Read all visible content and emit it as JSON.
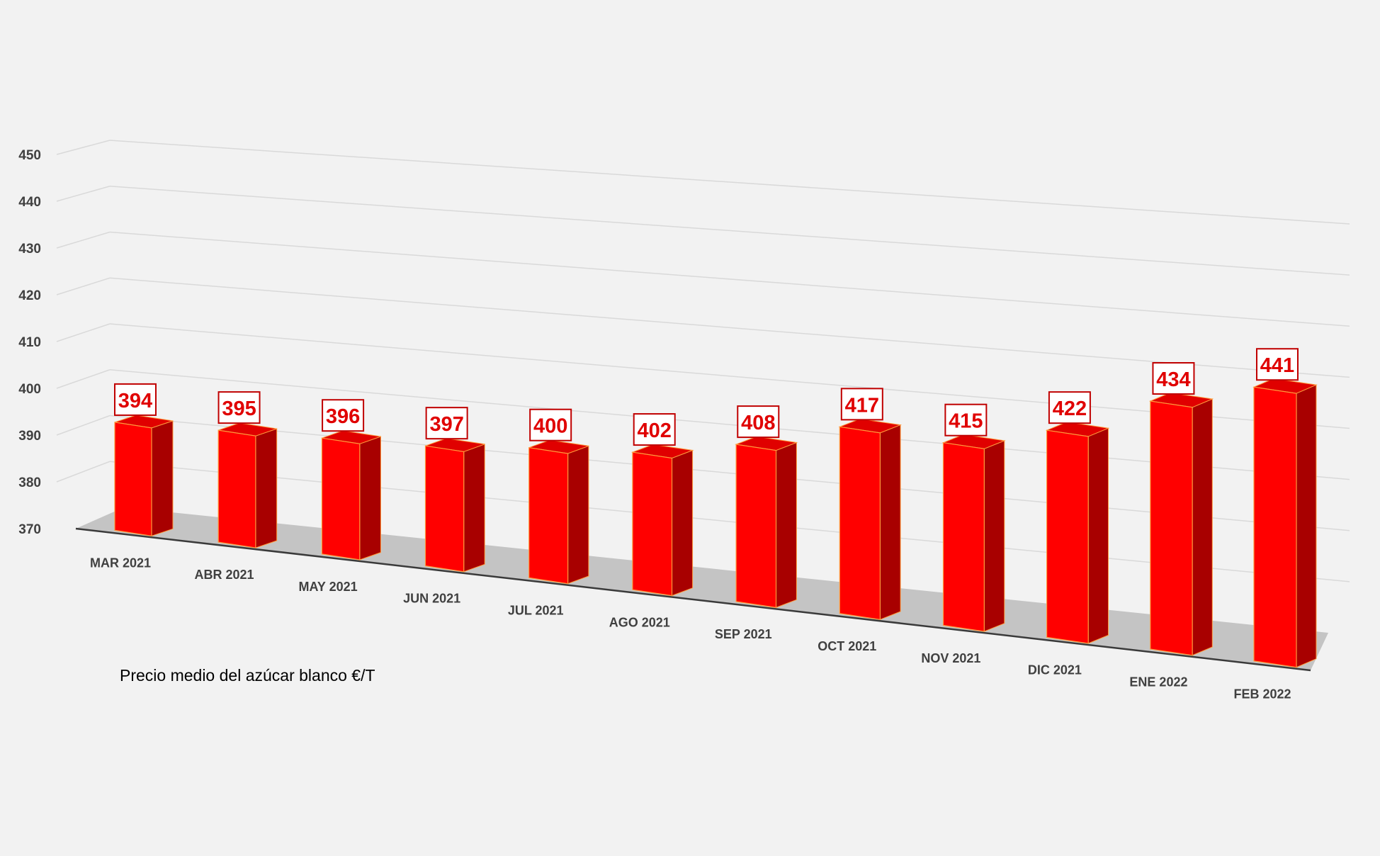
{
  "chart_data": {
    "type": "bar",
    "title": "",
    "caption": "Precio medio del azúcar blanco €/T",
    "categories": [
      "MAR 2021",
      "ABR 2021",
      "MAY 2021",
      "JUN 2021",
      "JUL 2021",
      "AGO 2021",
      "SEP 2021",
      "OCT 2021",
      "NOV 2021",
      "DIC 2021",
      "ENE 2022",
      "FEB 2022"
    ],
    "values": [
      394,
      395,
      396,
      397,
      400,
      402,
      408,
      417,
      415,
      422,
      434,
      441
    ],
    "ylim": [
      370,
      450
    ],
    "yticks": [
      "370",
      "380",
      "390",
      "400",
      "410",
      "420",
      "430",
      "440",
      "450"
    ],
    "grid": true,
    "legend": "none",
    "style": "3d-column",
    "colors": {
      "bar_front": "#ff0000",
      "bar_side": "#a80000",
      "bar_top": "#e00000",
      "bar_edge": "#ff9a3c",
      "label_text": "#e00000",
      "label_border": "#c00000",
      "floor": "#c4c4c4",
      "grid": "#d9d9d9",
      "background": "#f2f2f2"
    }
  }
}
